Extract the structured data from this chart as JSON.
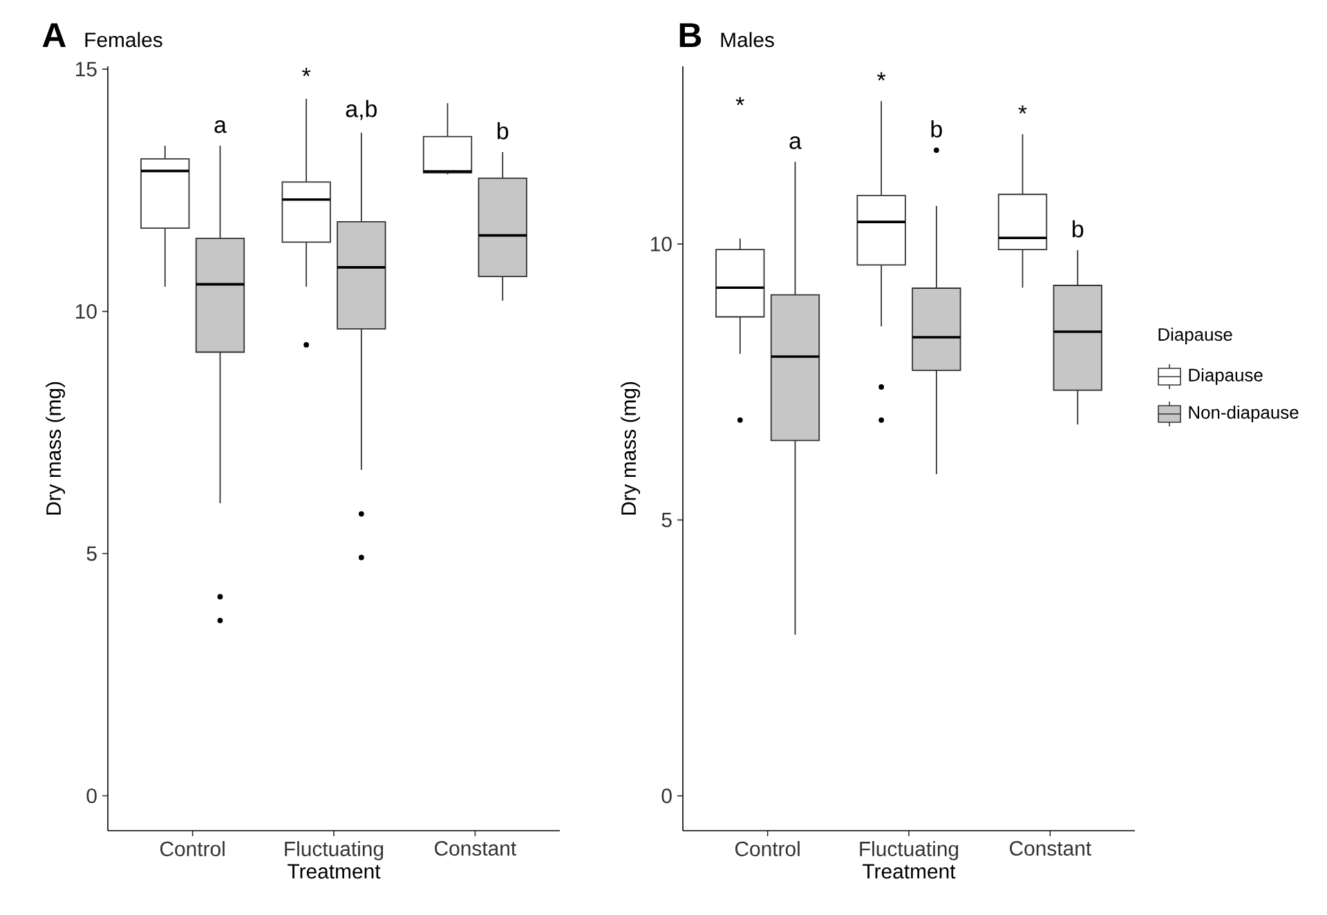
{
  "chart_data": [
    {
      "type": "box",
      "title": "A",
      "subtitle": "Females",
      "xlabel": "Treatment",
      "ylabel": "Dry mass (mg)",
      "categories": [
        "Control",
        "Fluctuating",
        "Constant"
      ],
      "ylim": [
        -0.72,
        15.06
      ],
      "yticks": [
        0,
        5,
        10,
        15
      ],
      "legend": false,
      "series": [
        {
          "color": "#ffffff",
          "value_labels": [
            null,
            "*",
            null
          ],
          "boxes": [
            {
              "low": 10.51,
              "q1": 11.72,
              "median": 12.9,
              "q3": 13.15,
              "high": 13.42
            },
            {
              "low": 10.51,
              "q1": 11.43,
              "median": 12.31,
              "q3": 12.67,
              "high": 14.39,
              "outliers": [
                9.31
              ]
            },
            {
              "low": 12.83,
              "q1": 12.86,
              "median": 12.89,
              "q3": 13.61,
              "high": 14.3
            }
          ]
        },
        {
          "color": "#c6c6c6",
          "value_labels": [
            "a",
            "a,b",
            "b"
          ],
          "boxes": [
            {
              "low": 6.04,
              "q1": 9.16,
              "median": 10.56,
              "q3": 11.51,
              "high": 13.42,
              "outliers": [
                4.11,
                3.62
              ]
            },
            {
              "low": 6.73,
              "q1": 9.64,
              "median": 10.91,
              "q3": 11.85,
              "high": 13.69,
              "outliers": [
                5.82,
                4.92
              ]
            },
            {
              "low": 10.22,
              "q1": 10.72,
              "median": 11.57,
              "q3": 12.75,
              "high": 13.29
            }
          ]
        }
      ]
    },
    {
      "type": "box",
      "title": "B",
      "subtitle": "Males",
      "xlabel": "Treatment",
      "ylabel": "Dry mass (mg)",
      "categories": [
        "Control",
        "Fluctuating",
        "Constant"
      ],
      "ylim": [
        -0.63,
        13.22
      ],
      "yticks": [
        0,
        5,
        10
      ],
      "legend": "right",
      "legend_title": "Diapause",
      "series": [
        {
          "name": "Diapause",
          "color": "#ffffff",
          "value_labels": [
            "*",
            "*",
            "*"
          ],
          "boxes": [
            {
              "low": 8.01,
              "q1": 8.68,
              "median": 9.21,
              "q3": 9.9,
              "high": 10.1,
              "outliers": [
                6.81
              ]
            },
            {
              "low": 8.51,
              "q1": 9.62,
              "median": 10.4,
              "q3": 10.88,
              "high": 12.59,
              "outliers": [
                7.41,
                6.81
              ]
            },
            {
              "low": 9.21,
              "q1": 9.9,
              "median": 10.11,
              "q3": 10.9,
              "high": 11.99
            }
          ]
        },
        {
          "name": "Non-diapause",
          "color": "#c6c6c6",
          "value_labels": [
            "a",
            "b",
            "b"
          ],
          "boxes": [
            {
              "low": 2.92,
              "q1": 6.44,
              "median": 7.96,
              "q3": 9.08,
              "high": 11.49
            },
            {
              "low": 5.83,
              "q1": 7.71,
              "median": 8.31,
              "q3": 9.2,
              "high": 10.69,
              "outliers": [
                11.7
              ]
            },
            {
              "low": 6.73,
              "q1": 7.35,
              "median": 8.41,
              "q3": 9.25,
              "high": 9.89
            }
          ]
        }
      ]
    }
  ]
}
